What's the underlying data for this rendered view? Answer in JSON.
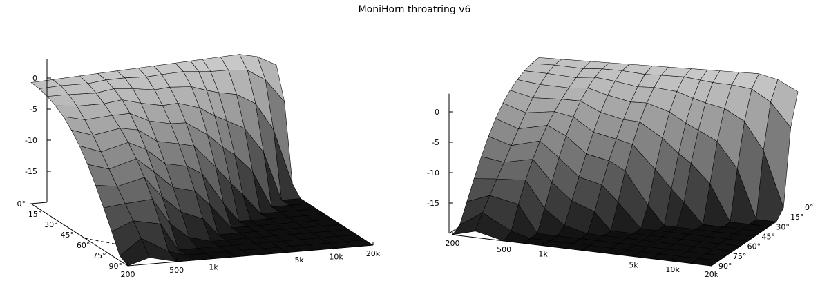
{
  "title": "MoniHorn throatring v6",
  "chart_data": {
    "type": "surface3d",
    "title": "MoniHorn throatring v6",
    "colors": {
      "background": "#ffffff",
      "mesh_line": "#000000",
      "surface_light": "#d8d8d8",
      "surface_dark": "#0a0a0a"
    },
    "z_axis": {
      "ticks": [
        "0",
        "-5",
        "-10",
        "-15"
      ],
      "range": [
        -20,
        3
      ]
    },
    "angle_axis": {
      "ticks": [
        "0°",
        "15°",
        "30°",
        "45°",
        "60°",
        "75°",
        "90°"
      ],
      "range": [
        0,
        90
      ]
    },
    "frequency_axis": {
      "ticks": [
        "200",
        "500",
        "1k",
        "5k",
        "10k",
        "20k"
      ],
      "scale": "log",
      "range": [
        200,
        20000
      ]
    },
    "frequency_samples": [
      200,
      300,
      500,
      700,
      1000,
      1500,
      2000,
      3000,
      4000,
      5000,
      7000,
      10000,
      14000,
      20000
    ],
    "angles": [
      0,
      7.5,
      15,
      22.5,
      30,
      37.5,
      45,
      52.5,
      60,
      67.5,
      75,
      82.5,
      90
    ],
    "panels": [
      {
        "name": "left-view",
        "view": "front-left"
      },
      {
        "name": "right-view",
        "view": "rear-right"
      }
    ]
  }
}
